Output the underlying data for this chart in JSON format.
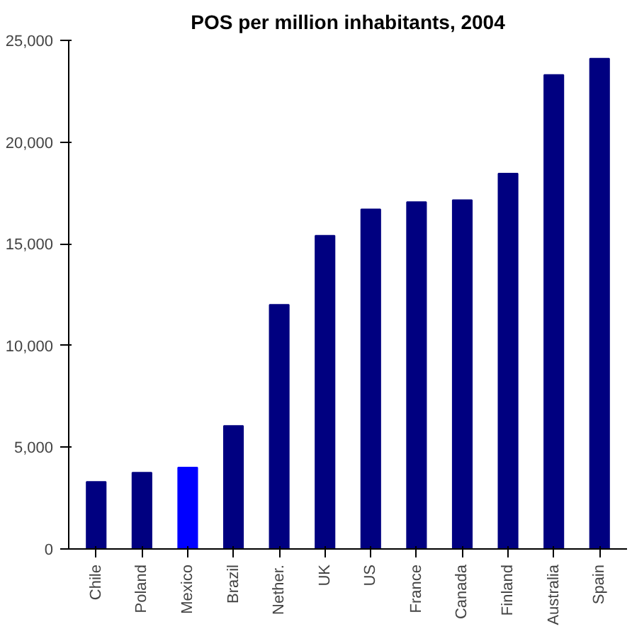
{
  "chart_data": {
    "type": "bar",
    "title": "POS per million inhabitants, 2004",
    "categories": [
      "Chile",
      "Poland",
      "Mexico",
      "Brazil",
      "Nether.",
      "UK",
      "US",
      "France",
      "Canada",
      "Finland",
      "Australia",
      "Spain"
    ],
    "values": [
      3300,
      3750,
      4000,
      6050,
      12000,
      15400,
      16700,
      17050,
      17150,
      18450,
      23300,
      24100
    ],
    "colors": [
      "#000080",
      "#000080",
      "#0000ff",
      "#000080",
      "#000080",
      "#000080",
      "#000080",
      "#000080",
      "#000080",
      "#000080",
      "#000080",
      "#000080"
    ],
    "ylim": [
      0,
      25000
    ],
    "yticks": [
      {
        "value": 0,
        "label": "0"
      },
      {
        "value": 5000,
        "label": "5,000"
      },
      {
        "value": 10000,
        "label": "10,000"
      },
      {
        "value": 15000,
        "label": "15,000"
      },
      {
        "value": 20000,
        "label": "20,000"
      },
      {
        "value": 25000,
        "label": "25,000"
      }
    ],
    "grid": false
  }
}
